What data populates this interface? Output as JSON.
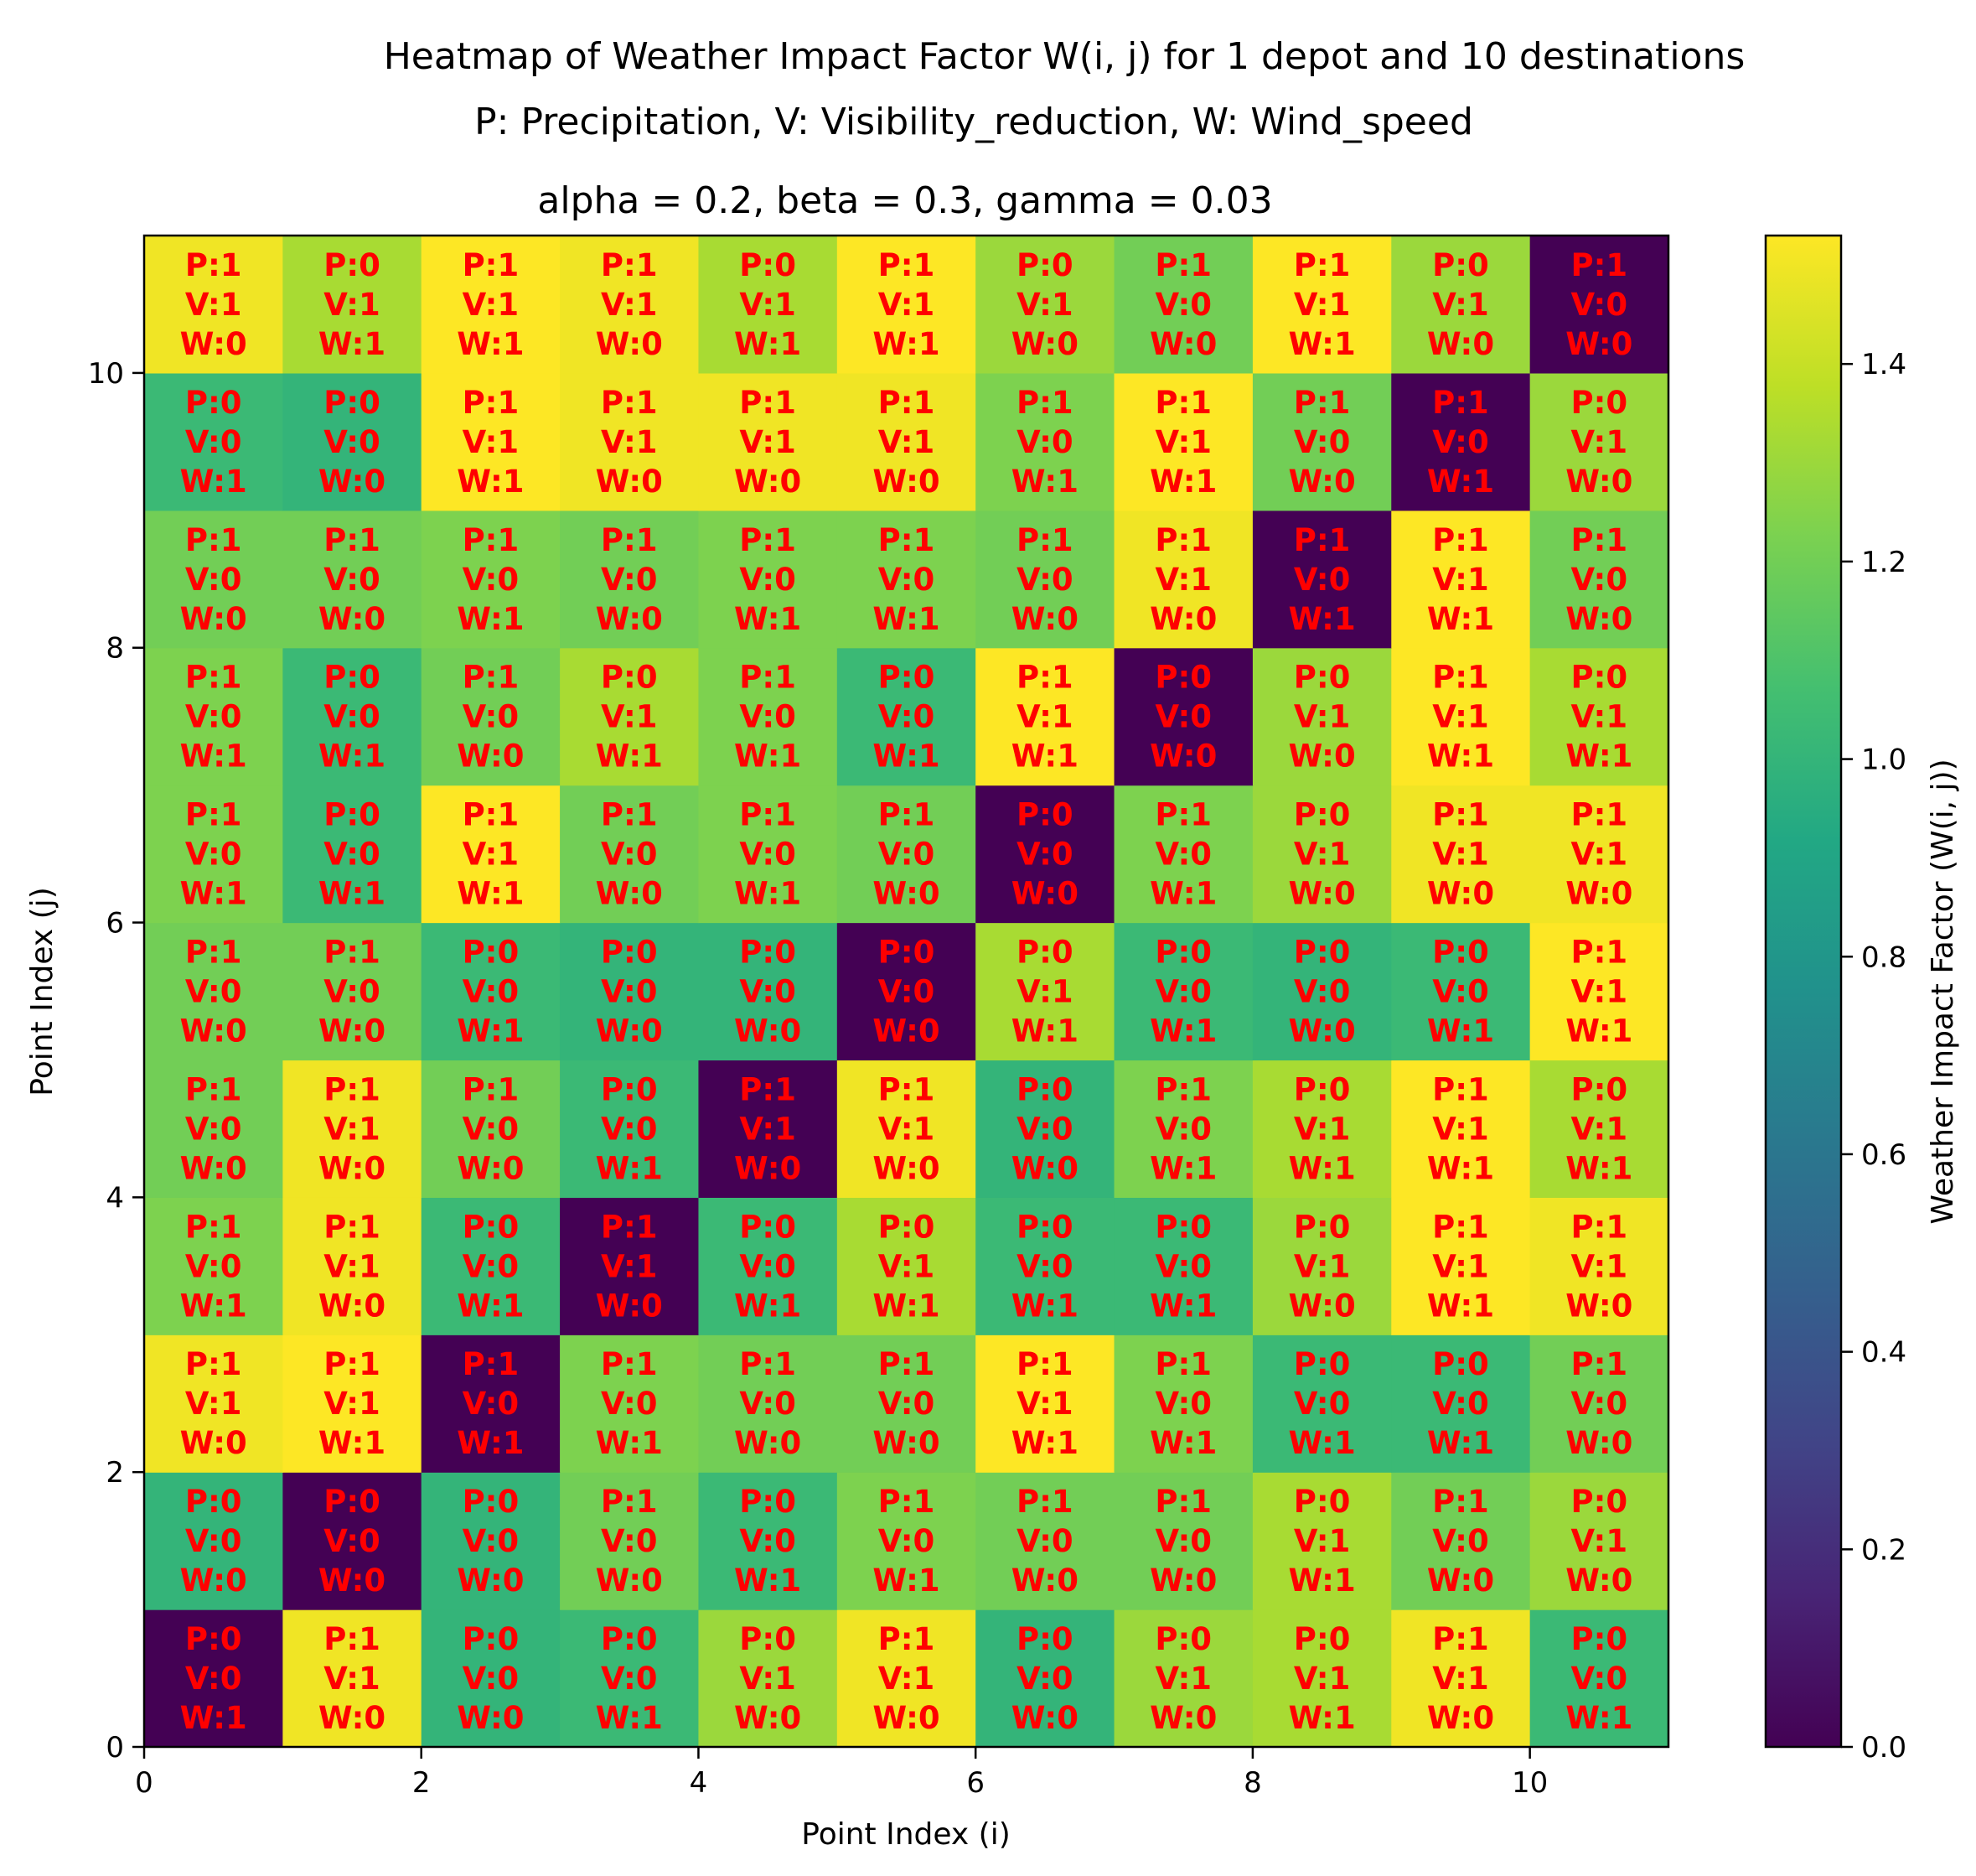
{
  "chart_data": {
    "type": "heatmap",
    "title": "Heatmap of Weather Impact Factor W(i, j) for 1 depot and 10 destinations",
    "subtitle": "P: Precipitation, V: Visibility_reduction, W: Wind_speed",
    "params": "alpha = 0.2, beta = 0.3, gamma = 0.03",
    "alpha": 0.2,
    "beta": 0.3,
    "gamma": 0.03,
    "xlabel": "Point Index (i)",
    "ylabel": "Point Index (j)",
    "xlim": [
      0,
      11
    ],
    "ylim": [
      0,
      11
    ],
    "xticks": [
      "0",
      "2",
      "4",
      "6",
      "8",
      "10"
    ],
    "yticks": [
      "0",
      "2",
      "4",
      "6",
      "8",
      "10"
    ],
    "colorbar": {
      "label": "Weather Impact Factor (W(i, j))",
      "range": [
        0.0,
        1.53
      ],
      "ticks": [
        "0.0",
        "0.2",
        "0.4",
        "0.6",
        "0.8",
        "1.0",
        "1.2",
        "1.4"
      ],
      "colormap": "viridis"
    },
    "rows_note": "rows[j][i], j = 0 is bottom row, i = 0 is leftmost column; each cell [P, V, W]",
    "rows": [
      [
        [
          0,
          0,
          1
        ],
        [
          1,
          1,
          0
        ],
        [
          0,
          0,
          0
        ],
        [
          0,
          0,
          1
        ],
        [
          0,
          1,
          0
        ],
        [
          1,
          1,
          0
        ],
        [
          0,
          0,
          0
        ],
        [
          0,
          1,
          0
        ],
        [
          0,
          1,
          1
        ],
        [
          1,
          1,
          0
        ],
        [
          0,
          0,
          1
        ]
      ],
      [
        [
          0,
          0,
          0
        ],
        [
          0,
          0,
          0
        ],
        [
          0,
          0,
          0
        ],
        [
          1,
          0,
          0
        ],
        [
          0,
          0,
          1
        ],
        [
          1,
          0,
          1
        ],
        [
          1,
          0,
          0
        ],
        [
          1,
          0,
          0
        ],
        [
          0,
          1,
          1
        ],
        [
          1,
          0,
          0
        ],
        [
          0,
          1,
          0
        ]
      ],
      [
        [
          1,
          1,
          0
        ],
        [
          1,
          1,
          1
        ],
        [
          1,
          0,
          1
        ],
        [
          1,
          0,
          1
        ],
        [
          1,
          0,
          0
        ],
        [
          1,
          0,
          0
        ],
        [
          1,
          1,
          1
        ],
        [
          1,
          0,
          1
        ],
        [
          0,
          0,
          1
        ],
        [
          0,
          0,
          1
        ],
        [
          1,
          0,
          0
        ]
      ],
      [
        [
          1,
          0,
          1
        ],
        [
          1,
          1,
          0
        ],
        [
          0,
          0,
          1
        ],
        [
          1,
          1,
          0
        ],
        [
          0,
          0,
          1
        ],
        [
          0,
          1,
          1
        ],
        [
          0,
          0,
          1
        ],
        [
          0,
          0,
          1
        ],
        [
          0,
          1,
          0
        ],
        [
          1,
          1,
          1
        ],
        [
          1,
          1,
          0
        ]
      ],
      [
        [
          1,
          0,
          0
        ],
        [
          1,
          1,
          0
        ],
        [
          1,
          0,
          0
        ],
        [
          0,
          0,
          1
        ],
        [
          1,
          1,
          0
        ],
        [
          1,
          1,
          0
        ],
        [
          0,
          0,
          0
        ],
        [
          1,
          0,
          1
        ],
        [
          0,
          1,
          1
        ],
        [
          1,
          1,
          1
        ],
        [
          0,
          1,
          1
        ]
      ],
      [
        [
          1,
          0,
          0
        ],
        [
          1,
          0,
          0
        ],
        [
          0,
          0,
          1
        ],
        [
          0,
          0,
          0
        ],
        [
          0,
          0,
          0
        ],
        [
          0,
          0,
          0
        ],
        [
          0,
          1,
          1
        ],
        [
          0,
          0,
          1
        ],
        [
          0,
          0,
          0
        ],
        [
          0,
          0,
          1
        ],
        [
          1,
          1,
          1
        ]
      ],
      [
        [
          1,
          0,
          1
        ],
        [
          0,
          0,
          1
        ],
        [
          1,
          1,
          1
        ],
        [
          1,
          0,
          0
        ],
        [
          1,
          0,
          1
        ],
        [
          1,
          0,
          0
        ],
        [
          0,
          0,
          0
        ],
        [
          1,
          0,
          1
        ],
        [
          0,
          1,
          0
        ],
        [
          1,
          1,
          0
        ],
        [
          1,
          1,
          0
        ]
      ],
      [
        [
          1,
          0,
          1
        ],
        [
          0,
          0,
          1
        ],
        [
          1,
          0,
          0
        ],
        [
          0,
          1,
          1
        ],
        [
          1,
          0,
          1
        ],
        [
          0,
          0,
          1
        ],
        [
          1,
          1,
          1
        ],
        [
          0,
          0,
          0
        ],
        [
          0,
          1,
          0
        ],
        [
          1,
          1,
          1
        ],
        [
          0,
          1,
          1
        ]
      ],
      [
        [
          1,
          0,
          0
        ],
        [
          1,
          0,
          0
        ],
        [
          1,
          0,
          1
        ],
        [
          1,
          0,
          0
        ],
        [
          1,
          0,
          1
        ],
        [
          1,
          0,
          1
        ],
        [
          1,
          0,
          0
        ],
        [
          1,
          1,
          0
        ],
        [
          1,
          0,
          1
        ],
        [
          1,
          1,
          1
        ],
        [
          1,
          0,
          0
        ]
      ],
      [
        [
          0,
          0,
          1
        ],
        [
          0,
          0,
          0
        ],
        [
          1,
          1,
          1
        ],
        [
          1,
          1,
          0
        ],
        [
          1,
          1,
          0
        ],
        [
          1,
          1,
          0
        ],
        [
          1,
          0,
          1
        ],
        [
          1,
          1,
          1
        ],
        [
          1,
          0,
          0
        ],
        [
          1,
          0,
          1
        ],
        [
          0,
          1,
          0
        ]
      ],
      [
        [
          1,
          1,
          0
        ],
        [
          0,
          1,
          1
        ],
        [
          1,
          1,
          1
        ],
        [
          1,
          1,
          0
        ],
        [
          0,
          1,
          1
        ],
        [
          1,
          1,
          1
        ],
        [
          0,
          1,
          0
        ],
        [
          1,
          0,
          0
        ],
        [
          1,
          1,
          1
        ],
        [
          0,
          1,
          0
        ],
        [
          1,
          0,
          0
        ]
      ]
    ]
  }
}
